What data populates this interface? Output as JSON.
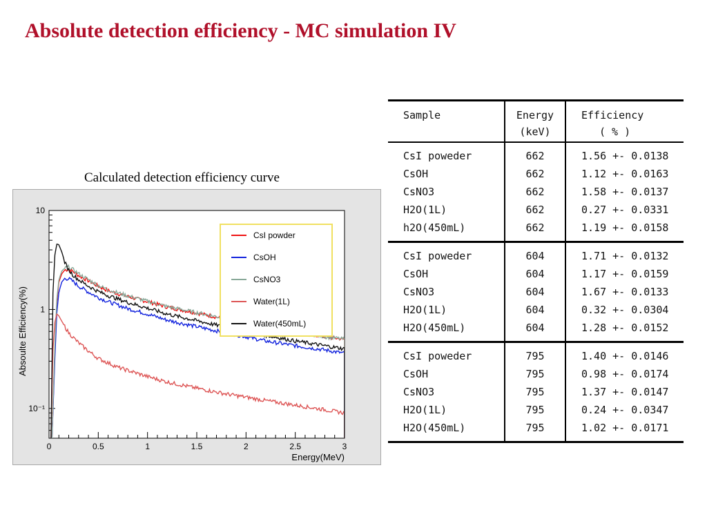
{
  "slide": {
    "title": "Absolute detection efficiency - MC simulation IV",
    "chart_caption": "Calculated detection efficiency curve"
  },
  "colors": {
    "title": "#b0102a",
    "chart_background": "#e4e4e4",
    "legend_border": "#f0e060"
  },
  "chart_data": {
    "type": "line",
    "xlabel": "Energy(MeV)",
    "ylabel": "Absoulte Efficiency(%)",
    "xlim": [
      0,
      3
    ],
    "ylim": [
      0.05,
      10
    ],
    "yscale": "log",
    "x_ticks": [
      "0",
      "0.5",
      "1",
      "1.5",
      "2",
      "2.5",
      "3"
    ],
    "y_ticks": [
      {
        "value": 10,
        "label": "10"
      },
      {
        "value": 1,
        "label": "1"
      },
      {
        "value": 0.1,
        "label": "10⁻¹"
      }
    ],
    "legend_position": "top-right",
    "series": [
      {
        "name": "CsI powder",
        "color": "#ee1111",
        "x": [
          0.03,
          0.06,
          0.08,
          0.1,
          0.13,
          0.16,
          0.2,
          0.25,
          0.3,
          0.4,
          0.5,
          0.6,
          0.8,
          1.0,
          1.2,
          1.5,
          1.8,
          2.0,
          2.2,
          2.5,
          2.8,
          3.0
        ],
        "y": [
          0.05,
          0.4,
          1.2,
          1.9,
          2.3,
          2.5,
          2.55,
          2.4,
          2.2,
          1.95,
          1.72,
          1.55,
          1.35,
          1.2,
          1.06,
          0.92,
          0.8,
          0.74,
          0.67,
          0.6,
          0.53,
          0.5
        ]
      },
      {
        "name": "CsOH",
        "color": "#1122dd",
        "x": [
          0.03,
          0.06,
          0.08,
          0.1,
          0.13,
          0.16,
          0.2,
          0.25,
          0.3,
          0.4,
          0.5,
          0.6,
          0.8,
          1.0,
          1.2,
          1.5,
          1.8,
          2.0,
          2.2,
          2.5,
          2.8,
          3.0
        ],
        "y": [
          0.05,
          0.33,
          0.95,
          1.5,
          1.9,
          2.05,
          2.05,
          1.9,
          1.72,
          1.5,
          1.32,
          1.2,
          1.02,
          0.9,
          0.78,
          0.67,
          0.58,
          0.53,
          0.48,
          0.43,
          0.39,
          0.36
        ]
      },
      {
        "name": "CsNO3",
        "color": "#88a898",
        "x": [
          0.03,
          0.06,
          0.08,
          0.1,
          0.13,
          0.16,
          0.2,
          0.25,
          0.3,
          0.4,
          0.5,
          0.6,
          0.8,
          1.0,
          1.2,
          1.5,
          1.8,
          2.0,
          2.2,
          2.5,
          2.8,
          3.0
        ],
        "y": [
          0.05,
          0.45,
          1.3,
          2.0,
          2.45,
          2.62,
          2.68,
          2.5,
          2.3,
          2.0,
          1.75,
          1.58,
          1.37,
          1.21,
          1.07,
          0.93,
          0.81,
          0.75,
          0.68,
          0.6,
          0.53,
          0.5
        ]
      },
      {
        "name": "Water(1L)",
        "color": "#dd5555",
        "x": [
          0.02,
          0.04,
          0.06,
          0.08,
          0.1,
          0.15,
          0.2,
          0.3,
          0.4,
          0.5,
          0.7,
          1.0,
          1.2,
          1.5,
          1.8,
          2.0,
          2.2,
          2.5,
          2.8,
          3.0
        ],
        "y": [
          0.05,
          0.4,
          0.75,
          0.9,
          0.86,
          0.7,
          0.58,
          0.46,
          0.38,
          0.32,
          0.26,
          0.21,
          0.185,
          0.16,
          0.14,
          0.13,
          0.12,
          0.108,
          0.097,
          0.09
        ]
      },
      {
        "name": "Water(450mL)",
        "color": "#111111",
        "x": [
          0.02,
          0.04,
          0.06,
          0.08,
          0.1,
          0.13,
          0.16,
          0.2,
          0.25,
          0.3,
          0.4,
          0.5,
          0.6,
          0.8,
          1.0,
          1.2,
          1.5,
          1.8,
          2.0,
          2.2,
          2.5,
          2.8,
          3.0
        ],
        "y": [
          0.05,
          1.5,
          3.6,
          4.6,
          4.5,
          3.8,
          3.0,
          2.5,
          2.2,
          2.0,
          1.72,
          1.52,
          1.38,
          1.18,
          1.03,
          0.9,
          0.77,
          0.66,
          0.6,
          0.55,
          0.48,
          0.43,
          0.4
        ]
      }
    ]
  },
  "table": {
    "headers": {
      "sample": "Sample",
      "energy": "Energy",
      "energy_unit": "(keV)",
      "efficiency": "Efficiency",
      "efficiency_unit": "( % )"
    },
    "groups": [
      {
        "rows": [
          {
            "sample": "CsI poweder",
            "energy": "662",
            "efficiency": "1.56 +- 0.0138"
          },
          {
            "sample": "CsOH",
            "energy": "662",
            "efficiency": "1.12 +- 0.0163"
          },
          {
            "sample": "CsNO3",
            "energy": "662",
            "efficiency": "1.58 +- 0.0137"
          },
          {
            "sample": "H2O(1L)",
            "energy": "662",
            "efficiency": "0.27 +- 0.0331"
          },
          {
            "sample": "h2O(450mL)",
            "energy": "662",
            "efficiency": "1.19 +- 0.0158"
          }
        ]
      },
      {
        "rows": [
          {
            "sample": "CsI poweder",
            "energy": "604",
            "efficiency": "1.71 +- 0.0132"
          },
          {
            "sample": "CsOH",
            "energy": "604",
            "efficiency": "1.17 +- 0.0159"
          },
          {
            "sample": "CsNO3",
            "energy": "604",
            "efficiency": "1.67 +- 0.0133"
          },
          {
            "sample": "H2O(1L)",
            "energy": "604",
            "efficiency": "0.32 +- 0.0304"
          },
          {
            "sample": "H2O(450mL)",
            "energy": "604",
            "efficiency": "1.28 +- 0.0152"
          }
        ]
      },
      {
        "rows": [
          {
            "sample": "CsI poweder",
            "energy": "795",
            "efficiency": "1.40 +- 0.0146"
          },
          {
            "sample": "CsOH",
            "energy": "795",
            "efficiency": "0.98 +- 0.0174"
          },
          {
            "sample": "CsNO3",
            "energy": "795",
            "efficiency": "1.37 +- 0.0147"
          },
          {
            "sample": "H2O(1L)",
            "energy": "795",
            "efficiency": "0.24 +- 0.0347"
          },
          {
            "sample": "H2O(450mL)",
            "energy": "795",
            "efficiency": "1.02 +- 0.0171"
          }
        ]
      }
    ]
  }
}
